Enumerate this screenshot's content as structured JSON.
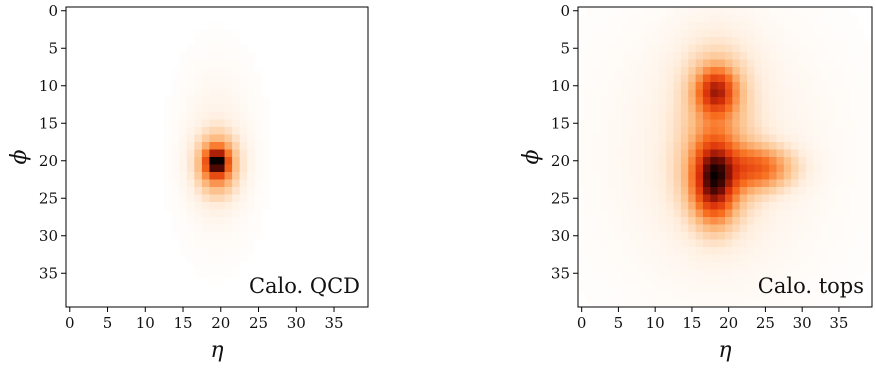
{
  "chart_data": [
    {
      "type": "heatmap",
      "title": "",
      "annotation": "Calo. QCD",
      "xlabel": "η",
      "ylabel": "ϕ",
      "xlim": [
        -0.5,
        39.5
      ],
      "ylim": [
        39.5,
        -0.5
      ],
      "xticks": [
        0,
        5,
        10,
        15,
        20,
        25,
        30,
        35
      ],
      "yticks": [
        0,
        5,
        10,
        15,
        20,
        25,
        30,
        35
      ],
      "colormap": "white-orange-red-black",
      "grid": false,
      "blobs": [
        {
          "cx": 19.5,
          "cy": 20.2,
          "sx": 0.9,
          "sy": 1.1,
          "amp": 1.0
        },
        {
          "cx": 19.5,
          "cy": 20.5,
          "sx": 1.8,
          "sy": 2.6,
          "amp": 0.55
        },
        {
          "cx": 19.5,
          "cy": 19.0,
          "sx": 3.0,
          "sy": 7.0,
          "amp": 0.06
        }
      ]
    },
    {
      "type": "heatmap",
      "title": "",
      "annotation": "Calo. tops",
      "xlabel": "η",
      "ylabel": "ϕ",
      "xlim": [
        -0.5,
        39.5
      ],
      "ylim": [
        39.5,
        -0.5
      ],
      "xticks": [
        0,
        5,
        10,
        15,
        20,
        25,
        30,
        35
      ],
      "yticks": [
        0,
        5,
        10,
        15,
        20,
        25,
        30,
        35
      ],
      "colormap": "white-orange-red-black",
      "grid": false,
      "blobs": [
        {
          "cx": 18.0,
          "cy": 22.5,
          "sx": 1.8,
          "sy": 3.4,
          "amp": 1.0
        },
        {
          "cx": 18.3,
          "cy": 21.5,
          "sx": 3.6,
          "sy": 5.0,
          "amp": 0.35
        },
        {
          "cx": 24.0,
          "cy": 21.0,
          "sx": 3.2,
          "sy": 1.9,
          "amp": 0.55
        },
        {
          "cx": 18.3,
          "cy": 10.8,
          "sx": 1.7,
          "sy": 2.0,
          "amp": 0.75
        },
        {
          "cx": 18.3,
          "cy": 10.5,
          "sx": 3.4,
          "sy": 4.5,
          "amp": 0.25
        },
        {
          "cx": 18.5,
          "cy": 19.0,
          "sx": 10.0,
          "sy": 12.0,
          "amp": 0.06
        }
      ]
    }
  ]
}
